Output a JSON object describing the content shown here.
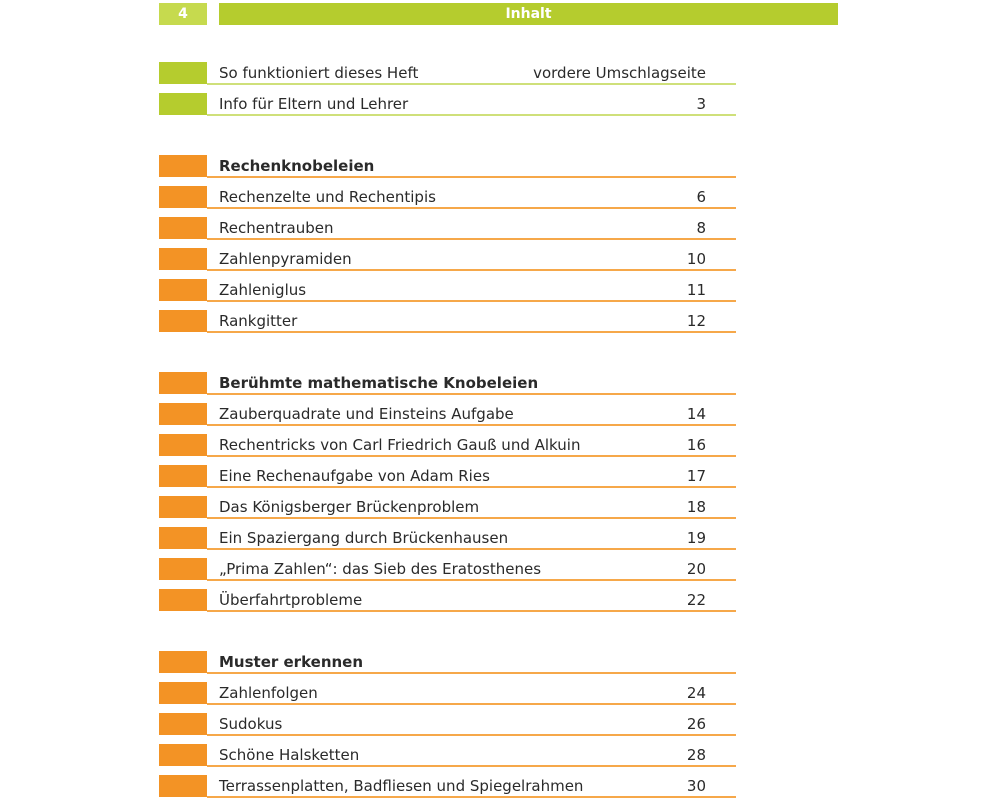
{
  "header": {
    "page_number": "4",
    "title": "Inhalt"
  },
  "colors": {
    "green": "#b5cc2e",
    "orange": "#f39325"
  },
  "intro": [
    {
      "title": "So funktioniert dieses Heft",
      "page": "vordere Umschlagseite"
    },
    {
      "title": "Info für Eltern und Lehrer",
      "page": "3"
    }
  ],
  "sections": [
    {
      "heading": "Rechenknobeleien",
      "items": [
        {
          "title": "Rechenzelte und Rechentipis",
          "page": "6"
        },
        {
          "title": "Rechentrauben",
          "page": "8"
        },
        {
          "title": "Zahlenpyramiden",
          "page": "10"
        },
        {
          "title": "Zahleniglus",
          "page": "11"
        },
        {
          "title": "Rankgitter",
          "page": "12"
        }
      ]
    },
    {
      "heading": "Berühmte mathematische Knobeleien",
      "items": [
        {
          "title": "Zauberquadrate und Einsteins Aufgabe",
          "page": "14"
        },
        {
          "title": "Rechentricks von Carl Friedrich Gauß und Alkuin",
          "page": "16"
        },
        {
          "title": "Eine Rechenaufgabe von Adam Ries",
          "page": "17"
        },
        {
          "title": "Das Königsberger Brückenproblem",
          "page": "18"
        },
        {
          "title": "Ein Spaziergang durch Brückenhausen",
          "page": "19"
        },
        {
          "title": "„Prima Zahlen“: das Sieb des Eratosthenes",
          "page": "20"
        },
        {
          "title": "Überfahrtprobleme",
          "page": "22"
        }
      ]
    },
    {
      "heading": "Muster erkennen",
      "items": [
        {
          "title": "Zahlenfolgen",
          "page": "24"
        },
        {
          "title": "Sudokus",
          "page": "26"
        },
        {
          "title": "Schöne Halsketten",
          "page": "28"
        },
        {
          "title": "Terrassenplatten, Badfliesen und Spiegelrahmen",
          "page": "30"
        }
      ]
    }
  ]
}
